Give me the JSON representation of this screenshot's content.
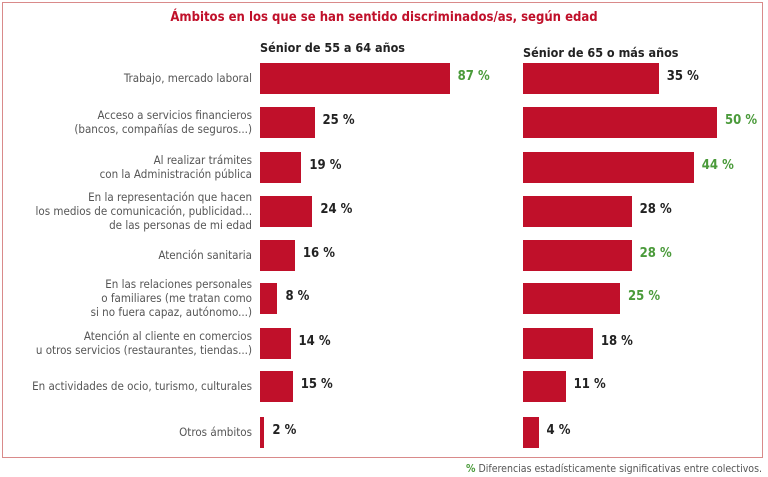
{
  "chart_data": {
    "type": "bar",
    "orientation": "horizontal",
    "title": "Ámbitos en los que se han sentido discriminados/as, según edad",
    "categories": [
      "Trabajo, mercado laboral",
      "Acceso a servicios financieros\n(bancos, compañías de seguros...)",
      "Al realizar trámites\ncon la Administración pública",
      "En la representación que hacen\nlos medios de comunicación, publicidad...\nde las personas de mi edad",
      "Atención sanitaria",
      "En las relaciones personales\no familiares (me tratan como\nsi no fuera capaz, autónomo...)",
      "Atención al cliente en comercios\nu otros servicios (restaurantes, tiendas...)",
      "En actividades de ocio, turismo, culturales",
      "Otros ámbitos"
    ],
    "series": [
      {
        "name": "Sénior de 55 a 64 años",
        "values": [
          87,
          25,
          19,
          24,
          16,
          8,
          14,
          15,
          2
        ],
        "significant": [
          true,
          false,
          false,
          false,
          false,
          false,
          false,
          false,
          false
        ]
      },
      {
        "name": "Sénior de 65 o más años",
        "values": [
          35,
          50,
          44,
          28,
          28,
          25,
          18,
          11,
          4
        ],
        "significant": [
          false,
          true,
          true,
          false,
          true,
          true,
          false,
          false,
          false
        ]
      }
    ],
    "value_suffix": " %",
    "grid": false,
    "colors": {
      "bar": "#c0102a",
      "significant_label": "#4a9a3a",
      "label": "#222222",
      "title": "#c0102a"
    },
    "footnote": {
      "marker": "%",
      "text": " Diferencias estadísticamente significativas entre colectivos."
    }
  }
}
